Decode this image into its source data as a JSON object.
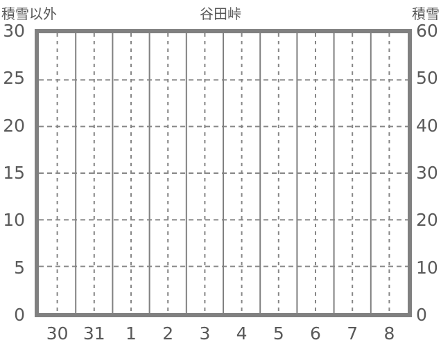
{
  "chart_data": {
    "type": "line",
    "title": "谷田峠",
    "x_tick_labels": [
      "30",
      "31",
      "1",
      "2",
      "3",
      "4",
      "5",
      "6",
      "7",
      "8"
    ],
    "series": [],
    "left_axis": {
      "title": "積雪以外",
      "ticks": [
        0,
        5,
        10,
        15,
        20,
        25,
        30
      ],
      "range": [
        0,
        30
      ]
    },
    "right_axis": {
      "title": "積雪",
      "ticks": [
        0,
        10,
        20,
        30,
        40,
        50,
        60
      ],
      "range": [
        0,
        60
      ]
    },
    "grid": {
      "vertical_solid_at_day_boundaries": true,
      "vertical_dashed_at_midday": true,
      "horizontal_dashed_at_yticks": true
    },
    "legend_position": "none",
    "colors": {
      "frame_and_grid": "#808080",
      "dashed_grid": "#868686",
      "tick_text": "#595959"
    }
  }
}
